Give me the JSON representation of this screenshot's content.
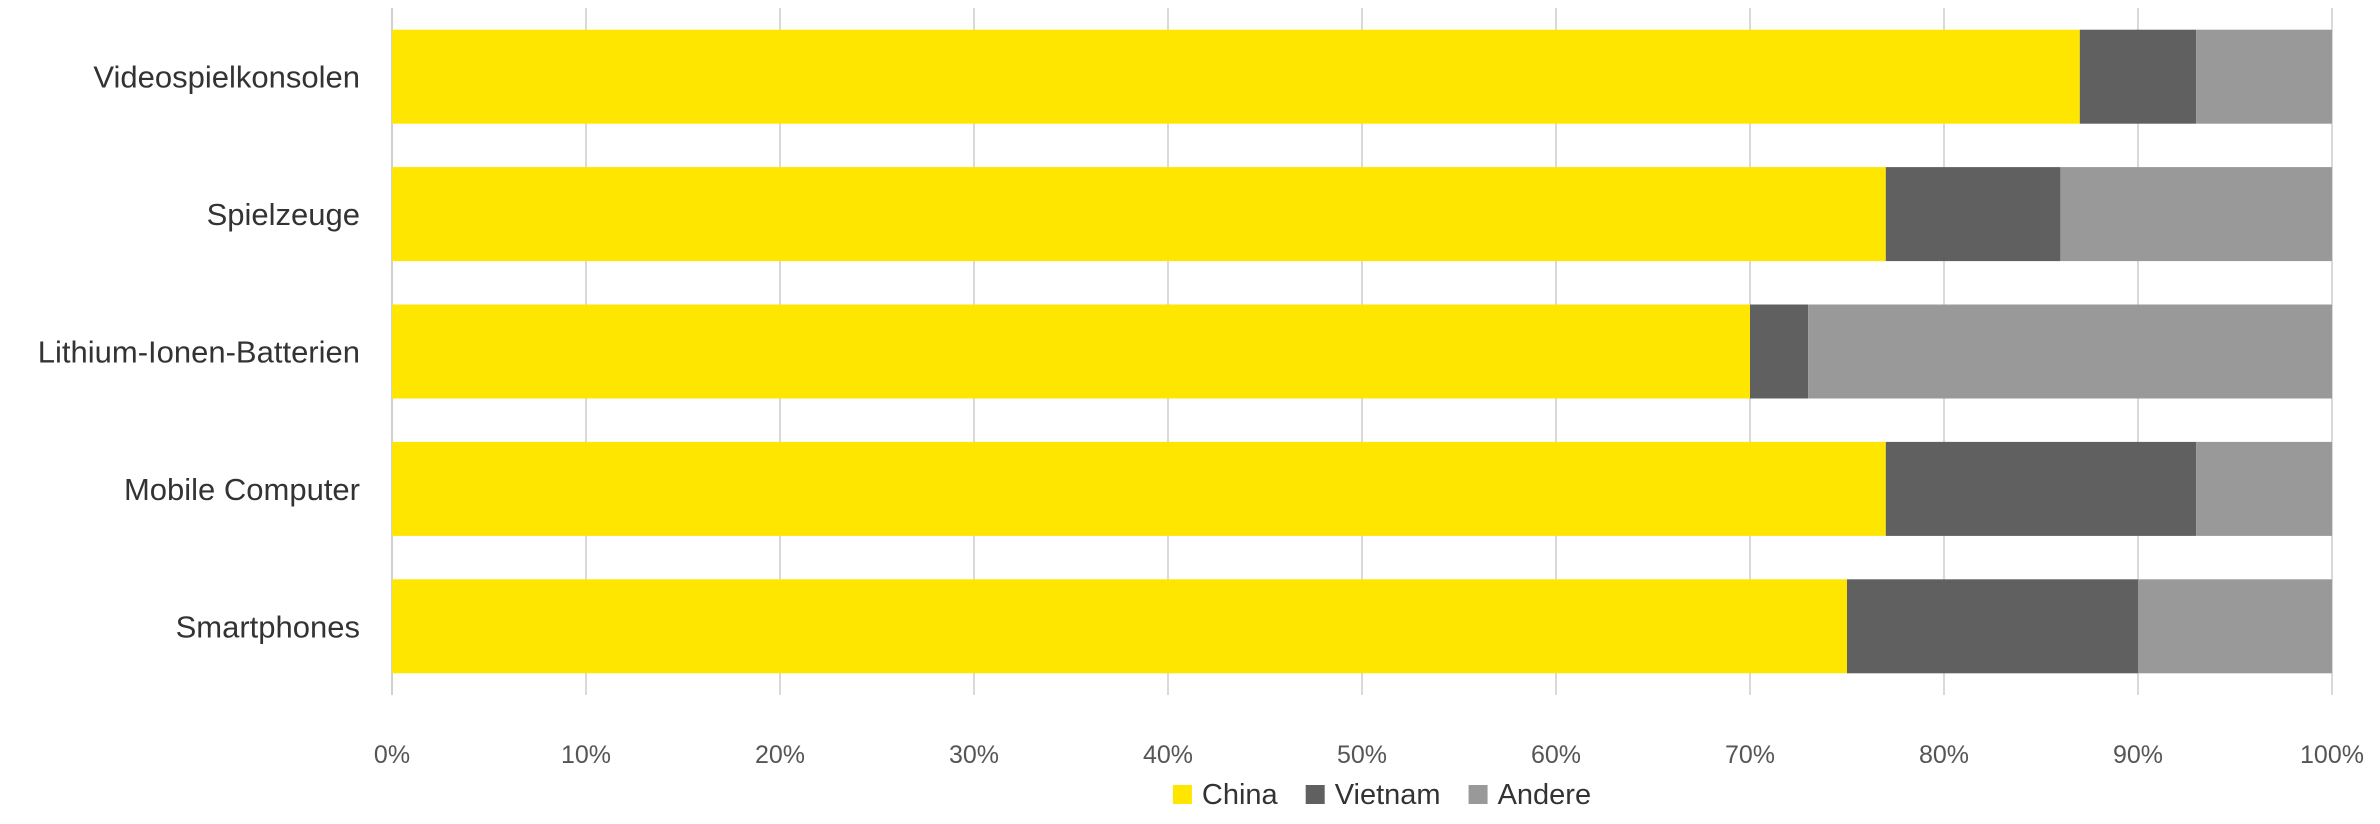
{
  "chart_data": {
    "type": "bar",
    "orientation": "horizontal",
    "stacked": true,
    "categories": [
      "Videospielkonsolen",
      "Spielzeuge",
      "Lithium-Ionen-Batterien",
      "Mobile Computer",
      "Smartphones"
    ],
    "series": [
      {
        "name": "China",
        "color": "#FFE600",
        "values": [
          87,
          77,
          70,
          77,
          75
        ]
      },
      {
        "name": "Vietnam",
        "color": "#606060",
        "values": [
          6,
          9,
          3,
          16,
          15
        ]
      },
      {
        "name": "Andere",
        "color": "#999999",
        "values": [
          7,
          14,
          27,
          7,
          10
        ]
      }
    ],
    "xlim": [
      0,
      100
    ],
    "x_ticks": [
      "0%",
      "10%",
      "20%",
      "30%",
      "40%",
      "50%",
      "60%",
      "70%",
      "80%",
      "90%",
      "100%"
    ],
    "grid": "vertical",
    "legend": "bottom-center",
    "title": "",
    "xlabel": "",
    "ylabel": ""
  }
}
